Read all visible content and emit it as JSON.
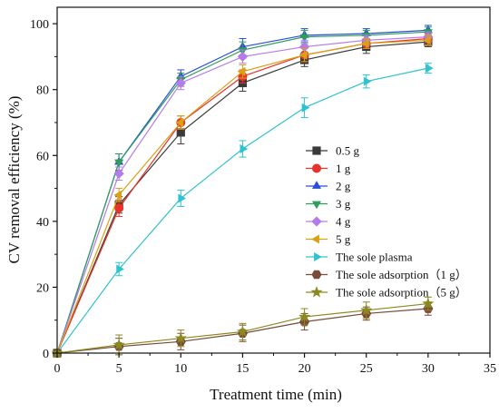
{
  "chart_data": {
    "type": "line",
    "title": "",
    "xlabel": "Treatment time (min)",
    "ylabel": "CV removal efficiency (%)",
    "xlim": [
      0,
      35
    ],
    "ylim": [
      0,
      105
    ],
    "x_ticks": [
      0,
      5,
      10,
      15,
      20,
      25,
      30,
      35
    ],
    "y_ticks": [
      0,
      20,
      40,
      60,
      80,
      100
    ],
    "grid": false,
    "legend_position": "center-right",
    "x": [
      0,
      5,
      10,
      15,
      20,
      25,
      30
    ],
    "series": [
      {
        "name": "0.5 g",
        "marker": "square",
        "color": "#3a3a3a",
        "values": [
          0,
          45.0,
          67.0,
          82.0,
          89.0,
          93.0,
          94.5
        ],
        "errors": [
          0,
          2.5,
          3.5,
          2.5,
          2.0,
          2.0,
          1.5
        ]
      },
      {
        "name": "1 g",
        "marker": "circle",
        "color": "#e8322c",
        "values": [
          0,
          44.0,
          70.0,
          84.0,
          90.5,
          94.0,
          95.5
        ],
        "errors": [
          0,
          2.5,
          2.0,
          2.0,
          2.0,
          1.5,
          1.5
        ]
      },
      {
        "name": "2 g",
        "marker": "triangle-up",
        "color": "#2a4ed8",
        "values": [
          0,
          58.0,
          84.0,
          93.0,
          96.5,
          97.0,
          98.0
        ],
        "errors": [
          0,
          2.5,
          2.0,
          2.5,
          2.0,
          1.5,
          1.5
        ]
      },
      {
        "name": "3 g",
        "marker": "triangle-down",
        "color": "#2e9e5a",
        "values": [
          0,
          58.0,
          83.0,
          92.0,
          96.0,
          96.5,
          97.5
        ],
        "errors": [
          0,
          2.5,
          2.0,
          2.5,
          2.0,
          1.5,
          1.5
        ]
      },
      {
        "name": "4 g",
        "marker": "diamond",
        "color": "#b57be8",
        "values": [
          0,
          54.5,
          82.0,
          90.0,
          93.0,
          95.0,
          96.0
        ],
        "errors": [
          0,
          2.0,
          2.0,
          2.0,
          2.0,
          1.5,
          1.5
        ]
      },
      {
        "name": "5 g",
        "marker": "triangle-left",
        "color": "#d9a214",
        "values": [
          0,
          48.0,
          70.0,
          85.5,
          90.5,
          94.0,
          95.0
        ],
        "errors": [
          0,
          2.0,
          2.0,
          2.0,
          2.0,
          1.5,
          1.5
        ]
      },
      {
        "name": "The sole plasma",
        "marker": "triangle-right",
        "color": "#2ec3cf",
        "values": [
          0,
          25.5,
          47.0,
          62.0,
          74.5,
          82.5,
          86.5
        ],
        "errors": [
          0,
          2.0,
          2.5,
          2.5,
          3.0,
          2.0,
          1.5
        ]
      },
      {
        "name": "The sole adsorption（1 g）",
        "marker": "hexagon",
        "color": "#7a4a3a",
        "values": [
          0,
          2.0,
          3.5,
          6.0,
          9.5,
          12.0,
          13.5
        ],
        "errors": [
          0,
          2.5,
          2.5,
          2.5,
          2.5,
          2.0,
          2.0
        ]
      },
      {
        "name": "The sole adsorption（5 g）",
        "marker": "star",
        "color": "#8a8a1e",
        "values": [
          0,
          2.5,
          4.5,
          6.5,
          11.0,
          13.0,
          15.0
        ],
        "errors": [
          0,
          3.0,
          2.5,
          2.5,
          2.5,
          2.5,
          2.0
        ]
      }
    ]
  }
}
